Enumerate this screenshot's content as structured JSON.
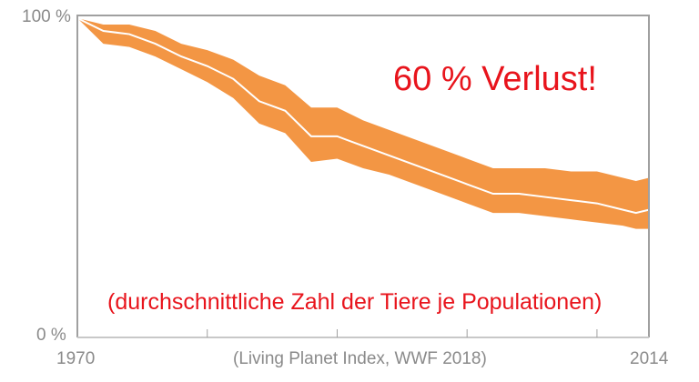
{
  "chart_data": {
    "type": "area",
    "title": "",
    "annotation_main": "60 % Verlust!",
    "annotation_sub": "(durchschnittliche Zahl der Tiere je Populationen)",
    "source": "(Living Planet Index, WWF 2018)",
    "x_tick_labels": [
      "1970",
      "2014"
    ],
    "y_tick_labels": [
      "100 %",
      "0 %"
    ],
    "xlim": [
      1970,
      2014
    ],
    "ylim": [
      0,
      100
    ],
    "x_minor_ticks": [
      1980,
      1990,
      2000,
      2010
    ],
    "grid": false,
    "colors": {
      "band": "#f39644",
      "line": "#ffffff",
      "annotation": "#e8141c",
      "axis": "#a0a0a0"
    },
    "series": [
      {
        "x": [
          1970,
          1972,
          1974,
          1976,
          1978,
          1980,
          1982,
          1984,
          1986,
          1988,
          1990,
          1992,
          1994,
          1996,
          1998,
          2000,
          2002,
          2004,
          2006,
          2008,
          2010,
          2012,
          2013,
          2014
        ],
        "y": [
          100,
          96,
          95,
          92,
          88,
          85,
          81,
          74,
          71,
          63,
          63,
          60,
          57,
          54,
          51,
          48,
          45,
          45,
          44,
          43,
          42,
          40,
          39,
          40
        ],
        "lower": [
          100,
          92,
          91,
          88,
          84,
          80,
          75,
          67,
          64,
          55,
          56,
          53,
          51,
          48,
          45,
          42,
          39,
          39,
          38,
          37,
          36,
          35,
          34,
          34
        ],
        "upper": [
          100,
          98,
          98,
          96,
          92,
          90,
          87,
          82,
          79,
          72,
          72,
          68,
          65,
          62,
          59,
          56,
          53,
          53,
          53,
          52,
          52,
          50,
          49,
          50
        ]
      }
    ]
  }
}
